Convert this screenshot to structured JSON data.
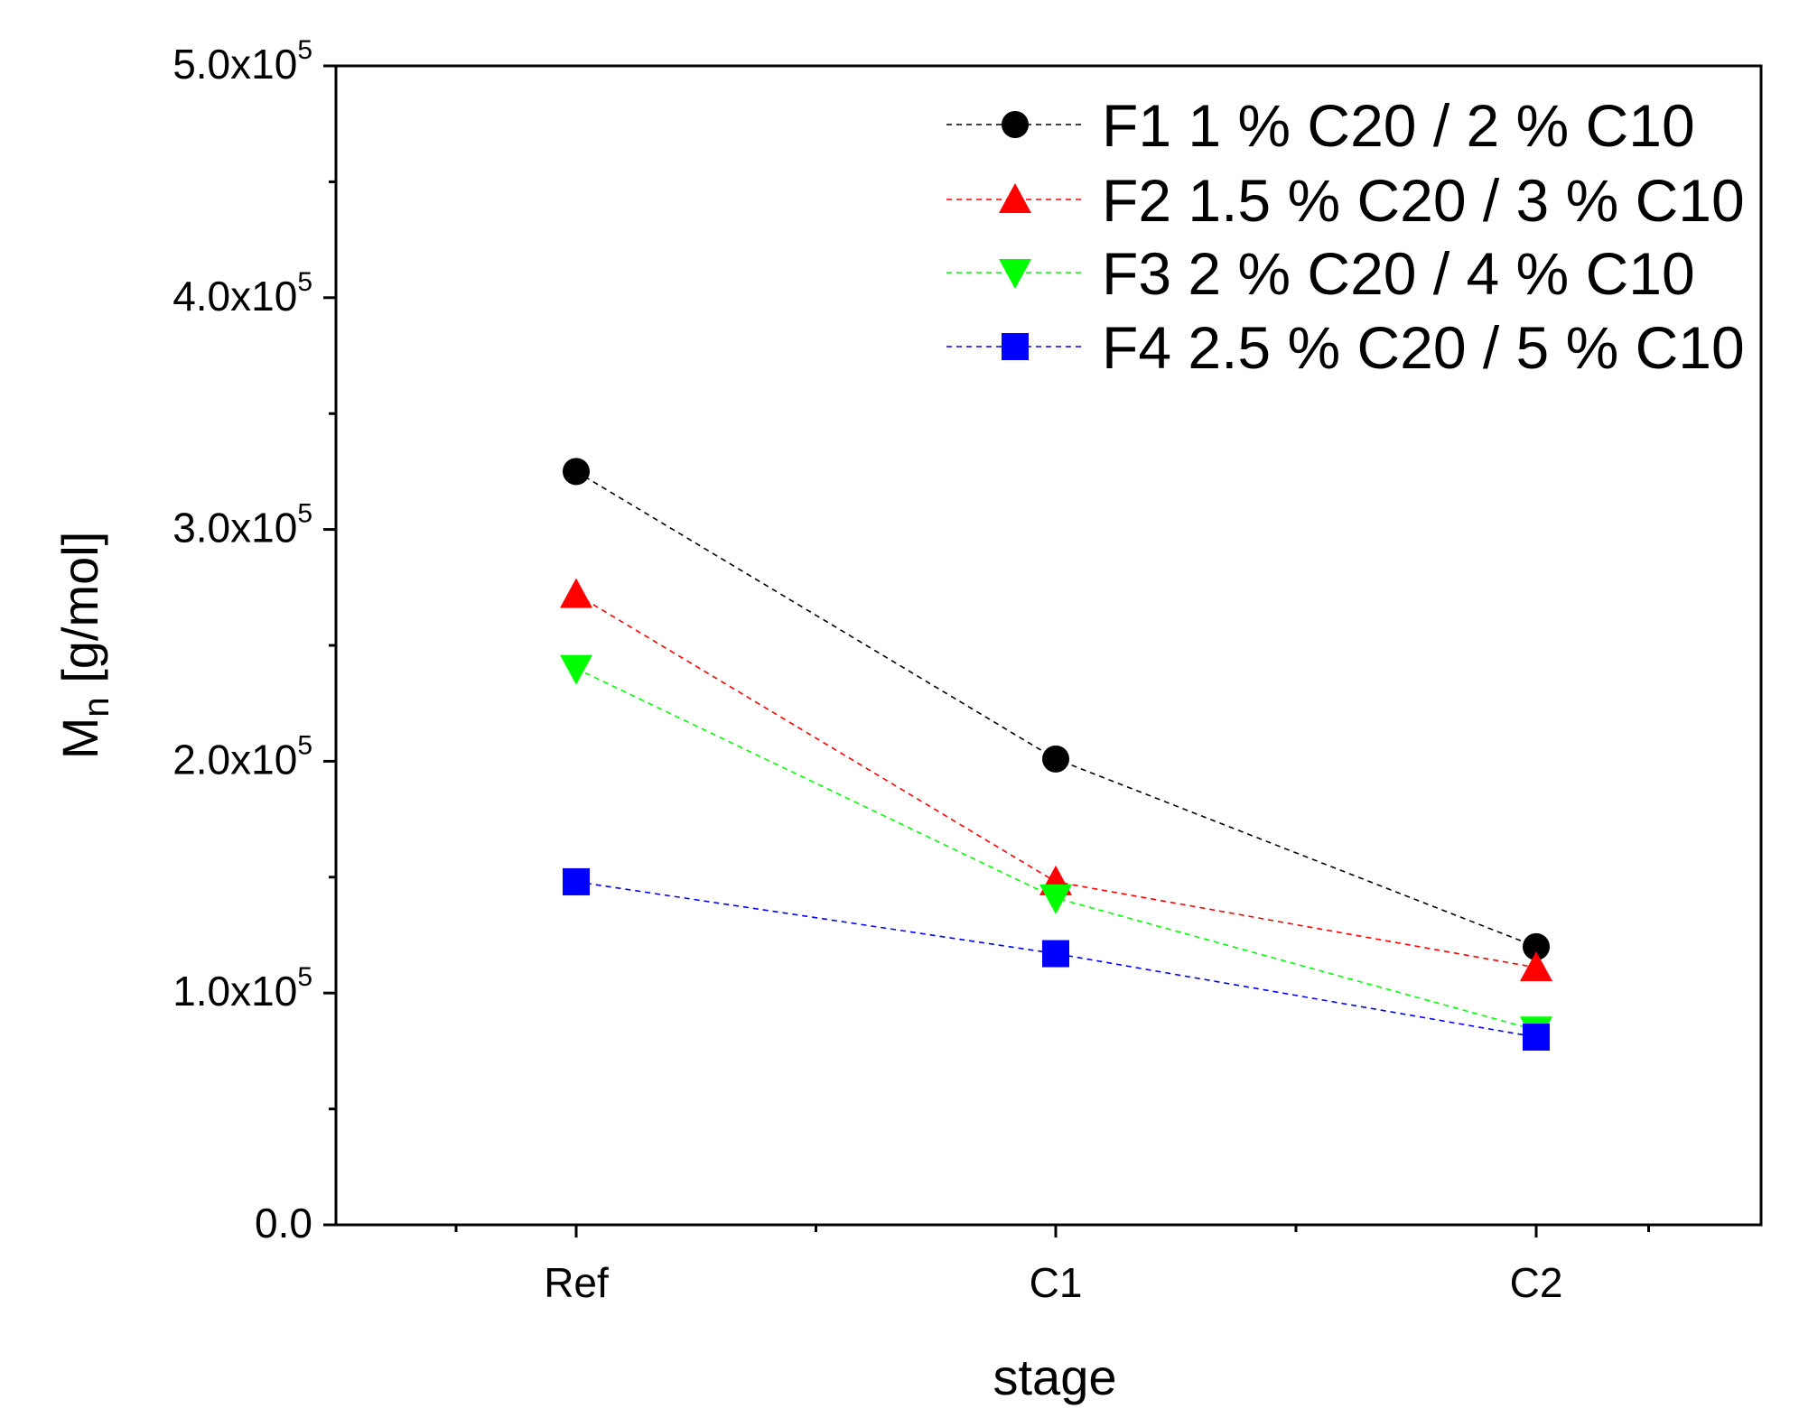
{
  "chart_data": {
    "type": "line",
    "xlabel": "stage",
    "ylabel": {
      "main": "M",
      "sub": "n",
      "rest": " [g/mol]"
    },
    "categories": [
      "Ref",
      "C1",
      "C2"
    ],
    "ylim": [
      0,
      500000
    ],
    "yticks": [
      {
        "value": 0,
        "mantissa": "0.0",
        "exponent": ""
      },
      {
        "value": 100000,
        "mantissa": "1.0x10",
        "exponent": "5"
      },
      {
        "value": 200000,
        "mantissa": "2.0x10",
        "exponent": "5"
      },
      {
        "value": 300000,
        "mantissa": "3.0x10",
        "exponent": "5"
      },
      {
        "value": 400000,
        "mantissa": "4.0x10",
        "exponent": "5"
      },
      {
        "value": 500000,
        "mantissa": "5.0x10",
        "exponent": "5"
      }
    ],
    "grid": false,
    "legend_position": "top-right",
    "series": [
      {
        "name": "F1 1 % C20 / 2 % C10",
        "color": "#000000",
        "marker": "circle",
        "values": [
          325000,
          201000,
          120000
        ]
      },
      {
        "name": "F2 1.5 % C20 / 3 % C10",
        "color": "#ff0000",
        "marker": "triangle-up",
        "values": [
          272000,
          148000,
          111000
        ]
      },
      {
        "name": "F3 2 % C20 / 4 % C10",
        "color": "#00ff00",
        "marker": "triangle-down",
        "values": [
          240000,
          141000,
          84000
        ]
      },
      {
        "name": "F4 2.5 % C20 / 5 % C10",
        "color": "#0000ff",
        "marker": "square",
        "values": [
          148000,
          117000,
          81000
        ]
      }
    ]
  }
}
